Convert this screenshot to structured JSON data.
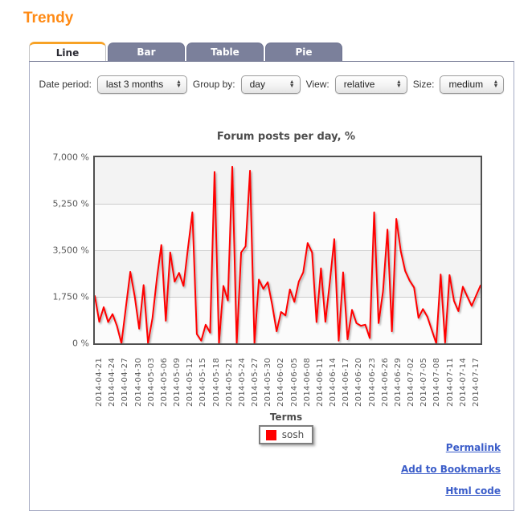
{
  "page": {
    "title": "Trendy"
  },
  "tabs": [
    {
      "label": "Line",
      "active": true
    },
    {
      "label": "Bar",
      "active": false
    },
    {
      "label": "Table",
      "active": false
    },
    {
      "label": "Pie",
      "active": false
    }
  ],
  "controls": [
    {
      "label": "Date period:",
      "value": "last 3 months"
    },
    {
      "label": "Group by:",
      "value": "day"
    },
    {
      "label": "View:",
      "value": "relative"
    },
    {
      "label": "Size:",
      "value": "medium"
    }
  ],
  "chart_data": {
    "type": "line",
    "title": "Forum posts per day, %",
    "legend_title": "Terms",
    "ylim": [
      0,
      7000
    ],
    "y_ticks": [
      "7,000 %",
      "5,250 %",
      "3,500 %",
      "1,750 %",
      "0 %"
    ],
    "x_start": "2014-04-21",
    "x_end": "2014-07-17",
    "x_step_days": 1,
    "x_tick_labels": [
      "2014-04-21",
      "2014-04-24",
      "2014-04-27",
      "2014-04-30",
      "2014-05-03",
      "2014-05-06",
      "2014-05-09",
      "2014-05-12",
      "2014-05-15",
      "2014-05-18",
      "2014-05-21",
      "2014-05-24",
      "2014-05-27",
      "2014-05-30",
      "2014-06-02",
      "2014-06-05",
      "2014-06-08",
      "2014-06-11",
      "2014-06-14",
      "2014-06-17",
      "2014-06-20",
      "2014-06-23",
      "2014-06-26",
      "2014-06-29",
      "2014-07-02",
      "2014-07-05",
      "2014-07-08",
      "2014-07-11",
      "2014-07-14",
      "2014-07-17"
    ],
    "series": [
      {
        "name": "sosh",
        "color": "#ff0000",
        "values": [
          1780,
          810,
          1360,
          800,
          1100,
          650,
          0,
          1350,
          2690,
          1760,
          550,
          2190,
          0,
          950,
          2450,
          3700,
          850,
          3420,
          2320,
          2650,
          2160,
          3570,
          4930,
          350,
          100,
          700,
          400,
          6450,
          0,
          2160,
          1610,
          6640,
          0,
          3420,
          3650,
          6490,
          0,
          2400,
          2050,
          2300,
          1450,
          450,
          1180,
          1050,
          2030,
          1560,
          2320,
          2670,
          3770,
          3420,
          800,
          2820,
          810,
          2300,
          3920,
          100,
          2670,
          150,
          1260,
          760,
          660,
          700,
          200,
          4930,
          760,
          1960,
          4280,
          450,
          4680,
          3470,
          2720,
          2360,
          2100,
          960,
          1290,
          1000,
          500,
          0,
          2590,
          30,
          2570,
          1600,
          1210,
          2130,
          1760,
          1410,
          1800,
          2180
        ]
      }
    ],
    "grid": true,
    "legend_position": "bottom"
  },
  "links": [
    {
      "label": "Permalink"
    },
    {
      "label": "Add to Bookmarks"
    },
    {
      "label": "Html code"
    }
  ],
  "colors": {
    "heading": "#ff8a14",
    "tab_active_top": "#f7a226",
    "tab_inactive_bg": "#7b809b",
    "panel_border": "#a6abc4",
    "series_red": "#ff0000",
    "link_blue": "#3b5dc9"
  }
}
